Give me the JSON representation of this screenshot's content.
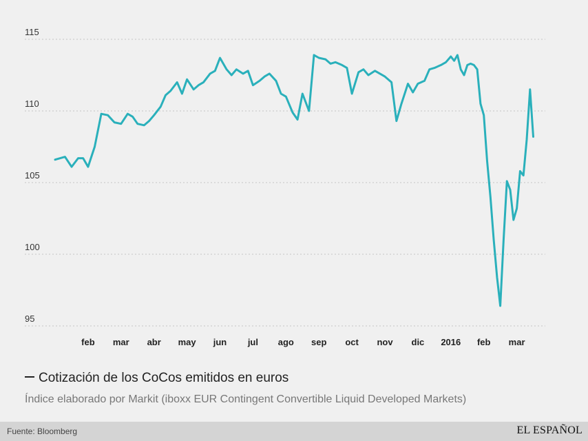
{
  "chart_data": {
    "type": "line",
    "title": "Cotización de los CoCos emitidos en euros",
    "subtitle": "Índice elaborado por Markit (iboxx EUR Contingent Convertible Liquid Developed Markets)",
    "ylim": [
      95,
      115
    ],
    "yticks": [
      95,
      100,
      105,
      110,
      115
    ],
    "grid": true,
    "x_tick_labels": [
      "feb",
      "mar",
      "abr",
      "may",
      "jun",
      "jul",
      "ago",
      "sep",
      "oct",
      "nov",
      "dic",
      "2016",
      "feb",
      "mar"
    ],
    "series": [
      {
        "name": "Cotización de los CoCos emitidos en euros",
        "color": "#2ab0bb",
        "x": [
          0,
          0.3,
          0.5,
          0.7,
          0.85,
          1,
          1.2,
          1.4,
          1.6,
          1.8,
          2,
          2.2,
          2.35,
          2.5,
          2.7,
          2.85,
          3,
          3.2,
          3.35,
          3.5,
          3.7,
          3.85,
          4,
          4.2,
          4.35,
          4.5,
          4.7,
          4.85,
          5,
          5.2,
          5.35,
          5.5,
          5.7,
          5.85,
          6,
          6.2,
          6.35,
          6.5,
          6.7,
          6.85,
          7,
          7.2,
          7.35,
          7.5,
          7.7,
          7.85,
          8,
          8.2,
          8.35,
          8.5,
          8.7,
          8.85,
          9,
          9.2,
          9.35,
          9.5,
          9.7,
          9.85,
          10,
          10.2,
          10.35,
          10.5,
          10.7,
          10.85,
          11,
          11.2,
          11.35,
          11.5,
          11.7,
          11.85,
          12,
          12.1,
          12.2,
          12.3,
          12.4,
          12.5,
          12.6,
          12.7,
          12.8,
          12.9,
          13,
          13.1,
          13.2,
          13.3,
          13.4,
          13.5,
          13.6,
          13.7,
          13.8,
          13.9,
          14,
          14.1,
          14.2,
          14.3,
          14.4,
          14.5
        ],
        "values": [
          106.6,
          106.8,
          106.1,
          106.7,
          106.7,
          106.1,
          107.5,
          109.8,
          109.7,
          109.2,
          109.1,
          109.8,
          109.6,
          109.1,
          109.0,
          109.3,
          109.7,
          110.3,
          111.1,
          111.4,
          112.0,
          111.2,
          112.2,
          111.5,
          111.8,
          112.0,
          112.6,
          112.8,
          113.7,
          112.9,
          112.5,
          112.9,
          112.6,
          112.8,
          111.8,
          112.1,
          112.4,
          112.6,
          112.1,
          111.2,
          111.0,
          109.9,
          109.4,
          111.2,
          110.0,
          113.9,
          113.7,
          113.6,
          113.3,
          113.4,
          113.2,
          113.0,
          111.2,
          112.7,
          112.9,
          112.5,
          112.8,
          112.6,
          112.4,
          112.0,
          109.3,
          110.5,
          111.9,
          111.3,
          111.9,
          112.1,
          112.9,
          113.0,
          113.2,
          113.4,
          113.8,
          113.5,
          113.9,
          112.9,
          112.5,
          113.2,
          113.3,
          113.2,
          112.9,
          110.5,
          109.7,
          106.5,
          104.0,
          101.0,
          98.4,
          96.4,
          101.0,
          105.1,
          104.5,
          102.4,
          103.2,
          105.8,
          105.5,
          108.0,
          111.5,
          108.2
        ]
      }
    ]
  },
  "legend": {
    "label": "Cotización de los CoCos emitidos en euros"
  },
  "footer": {
    "source": "Fuente: Bloomberg",
    "logo": "EL ESPAÑOL"
  }
}
